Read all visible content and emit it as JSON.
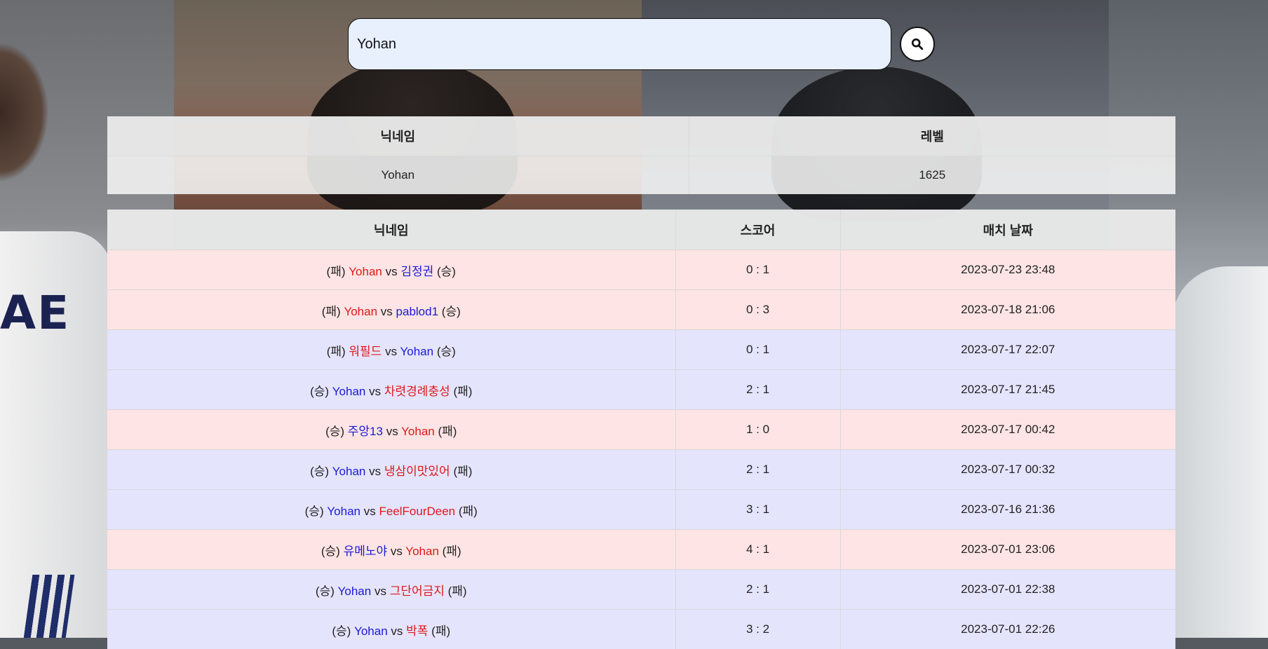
{
  "search": {
    "value": "Yohan"
  },
  "profile": {
    "headers": [
      "닉네임",
      "레벨"
    ],
    "nickname": "Yohan",
    "level": "1625"
  },
  "matches_headers": [
    "닉네임",
    "스코어",
    "매치 날짜"
  ],
  "matches": [
    {
      "left_tag": "(패)",
      "left_name": "Yohan",
      "vs": "vs",
      "right_name": "김정권",
      "right_tag": "(승)",
      "score": "0 : 1",
      "date": "2023-07-23 23:48",
      "result": "loss"
    },
    {
      "left_tag": "(패)",
      "left_name": "Yohan",
      "vs": "vs",
      "right_name": "pablod1",
      "right_tag": "(승)",
      "score": "0 : 3",
      "date": "2023-07-18 21:06",
      "result": "loss"
    },
    {
      "left_tag": "(패)",
      "left_name": "워필드",
      "vs": "vs",
      "right_name": "Yohan",
      "right_tag": "(승)",
      "score": "0 : 1",
      "date": "2023-07-17 22:07",
      "result": "win"
    },
    {
      "left_tag": "(승)",
      "left_name": "Yohan",
      "vs": "vs",
      "right_name": "차렷경례충성",
      "right_tag": "(패)",
      "score": "2 : 1",
      "date": "2023-07-17 21:45",
      "result": "win"
    },
    {
      "left_tag": "(승)",
      "left_name": "주앙13",
      "vs": "vs",
      "right_name": "Yohan",
      "right_tag": "(패)",
      "score": "1 : 0",
      "date": "2023-07-17 00:42",
      "result": "loss"
    },
    {
      "left_tag": "(승)",
      "left_name": "Yohan",
      "vs": "vs",
      "right_name": "냉삼이맛있어",
      "right_tag": "(패)",
      "score": "2 : 1",
      "date": "2023-07-17 00:32",
      "result": "win"
    },
    {
      "left_tag": "(승)",
      "left_name": "Yohan",
      "vs": "vs",
      "right_name": "FeelFourDeen",
      "right_tag": "(패)",
      "score": "3 : 1",
      "date": "2023-07-16 21:36",
      "result": "win"
    },
    {
      "left_tag": "(승)",
      "left_name": "유메노야",
      "vs": "vs",
      "right_name": "Yohan",
      "right_tag": "(패)",
      "score": "4 : 1",
      "date": "2023-07-01 23:06",
      "result": "loss"
    },
    {
      "left_tag": "(승)",
      "left_name": "Yohan",
      "vs": "vs",
      "right_name": "그단어금지",
      "right_tag": "(패)",
      "score": "2 : 1",
      "date": "2023-07-01 22:38",
      "result": "win"
    },
    {
      "left_tag": "(승)",
      "left_name": "Yohan",
      "vs": "vs",
      "right_name": "박폭",
      "right_tag": "(패)",
      "score": "3 : 2",
      "date": "2023-07-01 22:26",
      "result": "win"
    }
  ],
  "colors": {
    "loss_row": "#fee4e4",
    "win_row": "#e4e4fd",
    "winner_text": "#1a1ad6",
    "loser_text": "#e01818",
    "search_bg": "#e8f0fe"
  },
  "icons": {
    "search_button": "search-icon"
  }
}
